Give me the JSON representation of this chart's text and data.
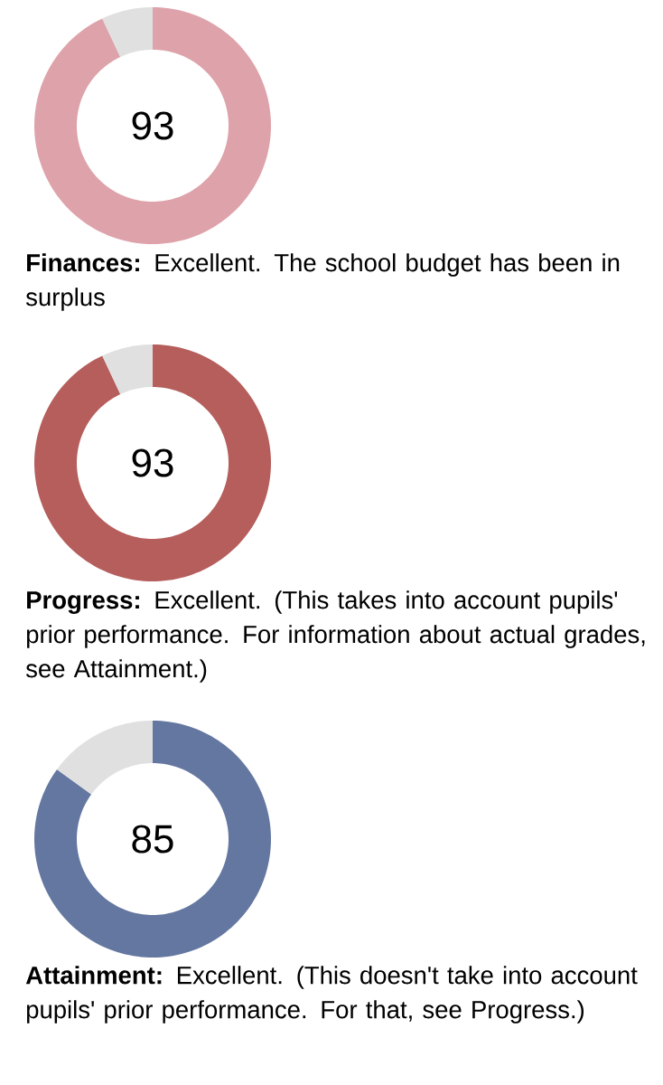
{
  "chart_data": [
    {
      "type": "donut",
      "categories": [
        null,
        null
      ],
      "values": [
        93,
        7
      ],
      "colors": [
        "#dea3aa",
        "#e0e0e0"
      ],
      "value_labels": [
        "93",
        null
      ],
      "annotations": [
        "**Finances:** Excellent. The school budget has been in surplus"
      ]
    },
    {
      "type": "donut",
      "categories": [
        null,
        null
      ],
      "values": [
        93,
        7
      ],
      "colors": [
        "#b55e5c",
        "#e0e0e0"
      ],
      "value_labels": [
        "93",
        null
      ],
      "annotations": [
        "**Progress:** Excellent. (This takes into account pupils' prior performance. For information about actual grades, see Attainment.)"
      ]
    },
    {
      "type": "donut",
      "categories": [
        null,
        null
      ],
      "values": [
        85,
        15
      ],
      "colors": [
        "#6477a0",
        "#e0e0e0"
      ],
      "value_labels": [
        "85",
        null
      ],
      "annotations": [
        "**Attainment:** Excellent. (This doesn't take into account pupils' prior performance. For that, see Progress.)"
      ]
    }
  ]
}
